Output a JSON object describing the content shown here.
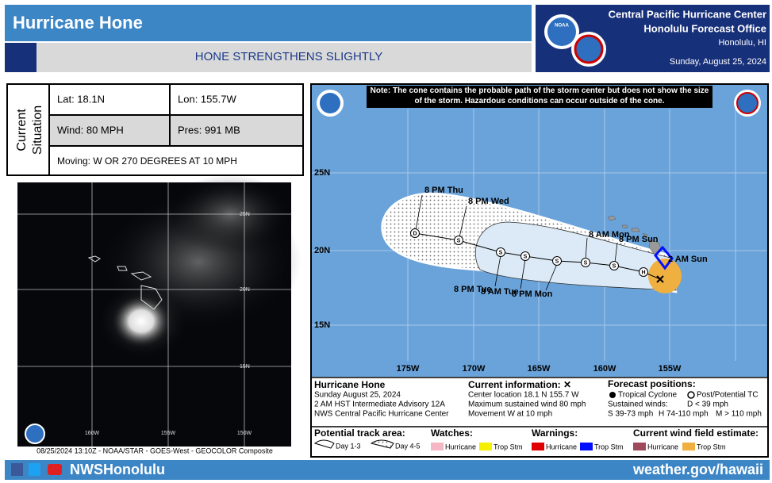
{
  "header": {
    "title": "Hurricane Hone",
    "subtitle": "HONE STRENGTHENS SLIGHTLY",
    "logo": "NOAA",
    "center": "Central Pacific Hurricane Center",
    "office": "Honolulu Forecast Office",
    "location": "Honolulu, HI",
    "date": "Sunday, August 25, 2024"
  },
  "current": {
    "heading_1": "Current",
    "heading_2": "Situation",
    "lat": "Lat: 18.1N",
    "lon": "Lon: 155.7W",
    "wind": "Wind: 80 MPH",
    "pressure": "Pres: 991 MB",
    "moving": "Moving: W OR 270 DEGREES AT 10 MPH"
  },
  "satellite": {
    "lat_labels": [
      "25N",
      "20N",
      "15N"
    ],
    "lon_labels": [
      "160W",
      "155W",
      "150W"
    ],
    "caption": "08/25/2024 13:10Z - NOAA/STAR - GOES-West - GEOCOLOR Composite"
  },
  "map": {
    "note": "Note: The cone contains the probable path of the storm center but does not show the size of the storm. Hazardous conditions can occur outside of the cone.",
    "lat_labels": [
      "25N",
      "20N",
      "15N"
    ],
    "lon_labels": [
      "175W",
      "170W",
      "165W",
      "160W",
      "155W"
    ],
    "time_labels": [
      "8 PM Thu",
      "8 PM Wed",
      "8 AM Mon",
      "8 PM Sun",
      "2 AM Sun",
      "8 PM Tue",
      "8 AM Tue",
      "8 PM Mon"
    ],
    "point_letters": [
      "D",
      "S",
      "S",
      "S",
      "S",
      "S",
      "S",
      "H"
    ]
  },
  "info": {
    "storm": "Hurricane Hone",
    "date": "Sunday August 25, 2024",
    "advisory": "2 AM HST Intermediate Advisory 12A",
    "office": "NWS Central Pacific Hurricane Center",
    "current_heading": "Current information: ✕",
    "location": "Center location 18.1 N 155.7 W",
    "wind": "Maximum sustained wind 80 mph",
    "movement": "Movement W at 10 mph",
    "forecast_heading": "Forecast positions:",
    "tc": "Tropical Cyclone",
    "post_tc": "Post/Potential TC",
    "winds_heading": "Sustained winds:",
    "d": "D < 39 mph",
    "s": "S 39-73 mph",
    "h": "H 74-110 mph",
    "m": "M > 110 mph"
  },
  "legend": {
    "track_heading": "Potential track area:",
    "day13": "Day 1-3",
    "day45": "Day 4-5",
    "watches": "Watches:",
    "watch_hu": "Hurricane",
    "watch_ts": "Trop Stm",
    "warnings": "Warnings:",
    "warn_hu": "Hurricane",
    "warn_ts": "Trop Stm",
    "wind_heading": "Current wind field estimate:",
    "wind_hu": "Hurricane",
    "wind_ts": "Trop Stm"
  },
  "footer": {
    "handle": "NWSHonolulu",
    "url": "weather.gov/hawaii"
  }
}
